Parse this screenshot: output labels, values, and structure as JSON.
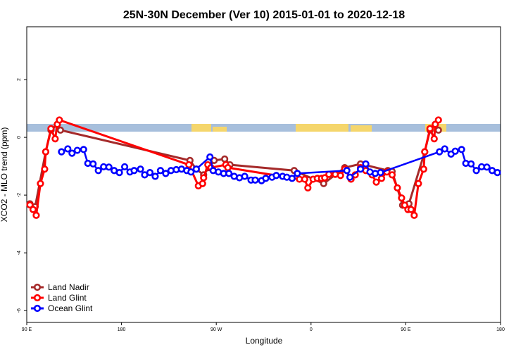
{
  "chart_data": {
    "type": "line",
    "title": "25N-30N December (Ver 10)   2015-01-01 to 2020-12-18",
    "xlabel": "Longitude",
    "ylabel": "XCO2 - MLO trend (ppm)",
    "xlim": [
      90,
      540
    ],
    "ylim": [
      -6.41,
      3.83
    ],
    "xticks": [
      {
        "value": 90,
        "label": "90 E"
      },
      180,
      {
        "value": 270,
        "label": "90 W"
      },
      {
        "value": 360,
        "label": "0"
      },
      {
        "value": 450,
        "label": "90 E"
      },
      {
        "value": 540,
        "label": "180"
      }
    ],
    "yticks": [
      -6,
      -4,
      -2,
      0,
      2
    ],
    "legend": "bottom-left",
    "series": [
      {
        "name": "Land Nadir",
        "color": "#a52a2a",
        "x": [
          93,
          98,
          108,
          113,
          119,
          122,
          245,
          251,
          258,
          263,
          268,
          278,
          283,
          344,
          372,
          392,
          407,
          433,
          437,
          447,
          453,
          468,
          473,
          478,
          481
        ],
        "values": [
          -2.3,
          -2.4,
          -0.5,
          0.25,
          0.45,
          0.25,
          -0.8,
          -1.1,
          -1.3,
          -1.05,
          -0.8,
          -0.75,
          -0.95,
          -1.15,
          -1.6,
          -1.05,
          -0.92,
          -1.15,
          -1.18,
          -2.35,
          -2.3,
          -0.5,
          0.25,
          0.45,
          0.25
        ]
      },
      {
        "name": "Land Glint",
        "color": "#ff0000",
        "x": [
          93,
          96,
          99,
          103,
          107,
          108,
          113,
          117,
          119,
          121,
          244,
          253,
          257,
          258,
          262,
          265,
          279,
          281,
          349,
          354,
          357,
          362,
          366,
          370,
          373,
          377,
          383,
          388,
          392,
          398,
          402,
          407,
          412,
          418,
          422,
          427,
          432,
          437,
          442,
          446,
          449,
          452,
          455,
          458,
          462,
          467,
          468,
          473,
          477,
          478,
          481
        ],
        "values": [
          -2.34,
          -2.5,
          -2.7,
          -1.6,
          -1.1,
          -0.5,
          0.3,
          -0.05,
          0.45,
          0.6,
          -0.95,
          -1.68,
          -1.6,
          -1.4,
          -0.95,
          -1.05,
          -0.95,
          -1.05,
          -1.45,
          -1.45,
          -1.75,
          -1.45,
          -1.42,
          -1.42,
          -1.4,
          -1.28,
          -1.28,
          -1.32,
          -1.1,
          -1.45,
          -1.3,
          -1.05,
          -1.15,
          -1.3,
          -1.55,
          -1.42,
          -1.2,
          -1.3,
          -1.75,
          -2.1,
          -2.35,
          -2.5,
          -2.5,
          -2.7,
          -1.6,
          -1.1,
          -0.5,
          0.3,
          -0.05,
          0.45,
          0.6
        ]
      },
      {
        "name": "Ocean Glint",
        "color": "#0000ff",
        "x": [
          123,
          129,
          133,
          138,
          144,
          148,
          153,
          158,
          163,
          168,
          173,
          178,
          183,
          188,
          192,
          198,
          202,
          207,
          212,
          217,
          222,
          227,
          232,
          237,
          242,
          246,
          251,
          264,
          267,
          272,
          277,
          282,
          287,
          292,
          297,
          303,
          307,
          313,
          317,
          323,
          327,
          333,
          337,
          342,
          347,
          394,
          397,
          407,
          412,
          416,
          421,
          426,
          482,
          487,
          493,
          497,
          503,
          507,
          512,
          517,
          522,
          527,
          532,
          537
        ],
        "values": [
          -0.5,
          -0.4,
          -0.55,
          -0.45,
          -0.42,
          -0.9,
          -0.92,
          -1.15,
          -1.02,
          -1.03,
          -1.15,
          -1.22,
          -1.02,
          -1.2,
          -1.15,
          -1.1,
          -1.3,
          -1.22,
          -1.35,
          -1.15,
          -1.25,
          -1.15,
          -1.12,
          -1.1,
          -1.15,
          -1.2,
          -1.1,
          -0.68,
          -1.15,
          -1.2,
          -1.25,
          -1.25,
          -1.35,
          -1.4,
          -1.35,
          -1.48,
          -1.48,
          -1.5,
          -1.42,
          -1.38,
          -1.32,
          -1.35,
          -1.38,
          -1.42,
          -1.25,
          -1.15,
          -1.38,
          -1.1,
          -0.92,
          -1.2,
          -1.25,
          -1.22,
          -0.5,
          -0.4,
          -0.58,
          -0.48,
          -0.42,
          -0.9,
          -0.92,
          -1.15,
          -1.02,
          -1.03,
          -1.15,
          -1.22
        ]
      }
    ]
  }
}
